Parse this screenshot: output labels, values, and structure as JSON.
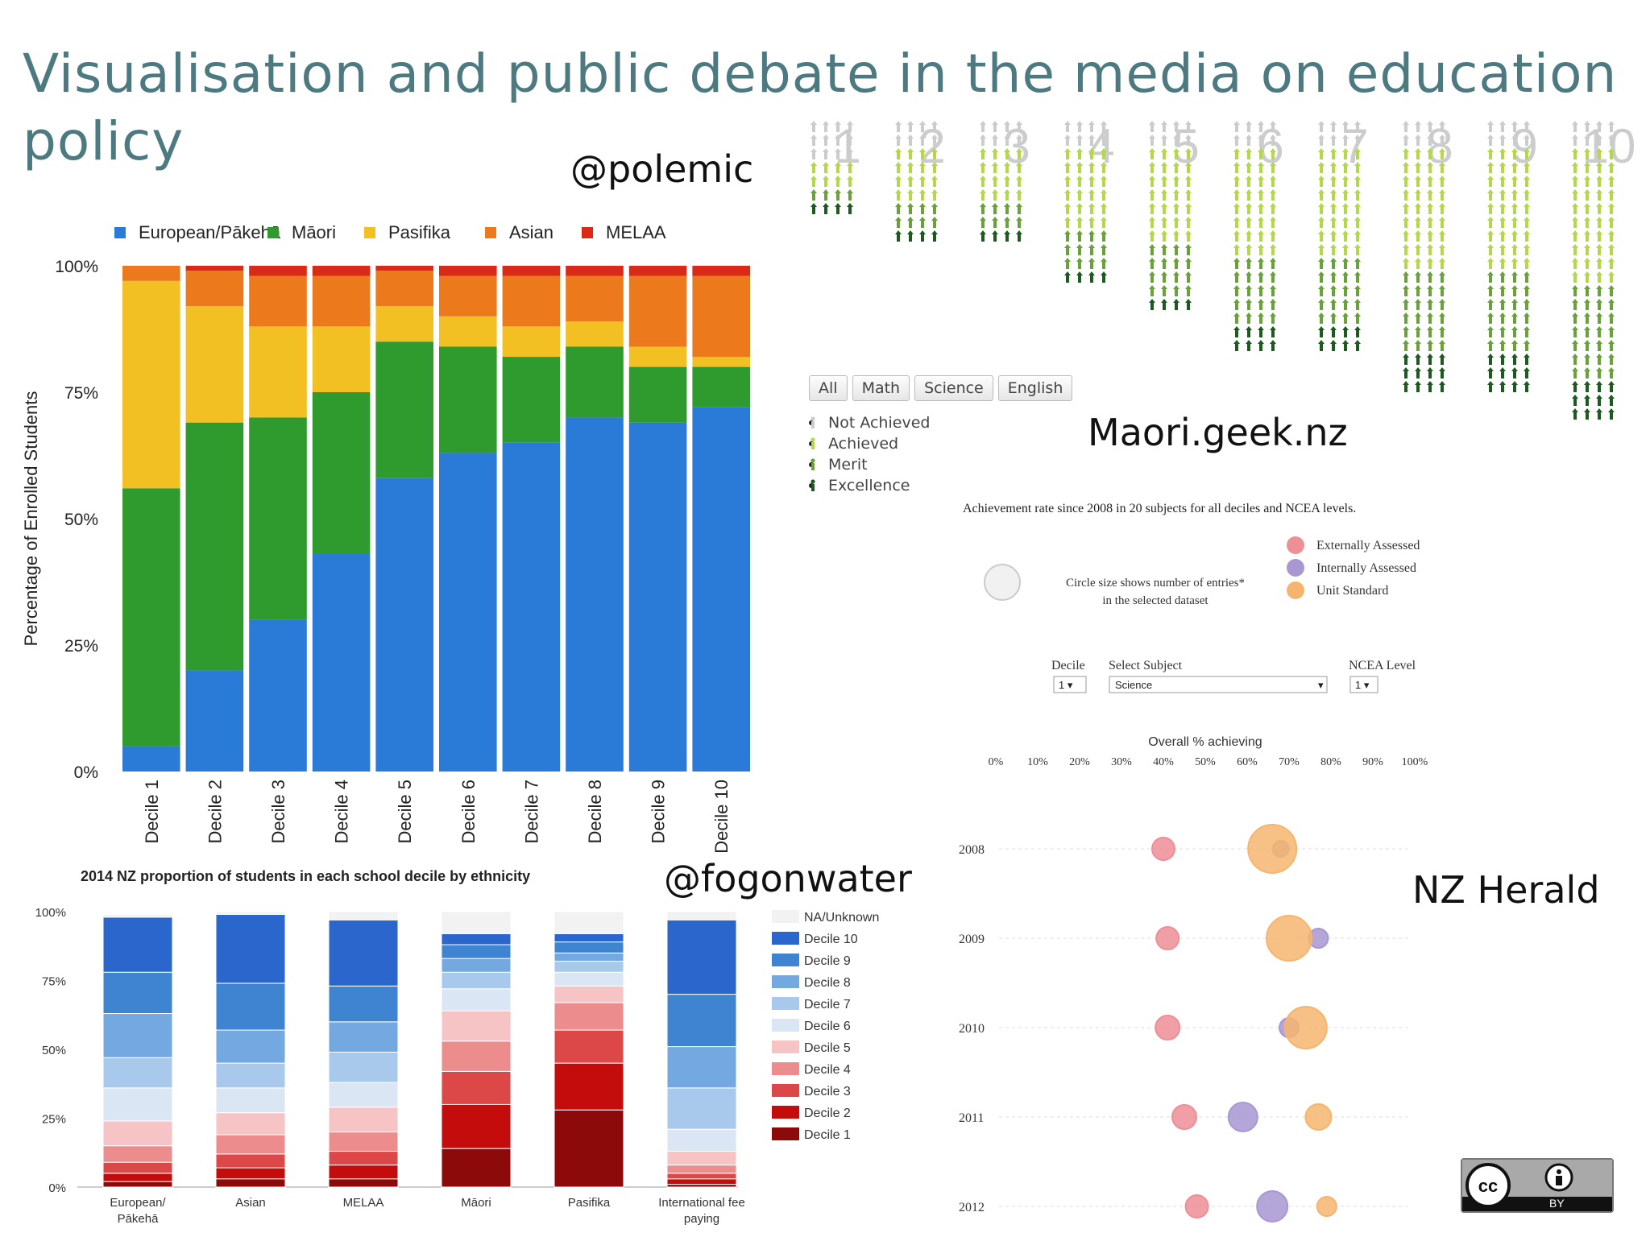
{
  "slide": {
    "title": "Visualisation and public debate in the media on education policy",
    "credits": {
      "polemic": "@polemic",
      "fogonwater": "@fogonwater",
      "maori_geek": "Maori.geek.nz",
      "nz_herald": "NZ Herald"
    },
    "license_badge": {
      "text": "BY",
      "icon": "creative-commons-icon"
    }
  },
  "colors": {
    "title": "#4c7a80",
    "european": "#2a7ad8",
    "maori": "#2f9a2e",
    "pasifika": "#f2c022",
    "asian": "#ec7a1c",
    "melaa": "#d82a16",
    "not_achieved": "#cccccc",
    "achieved": "#b3d84a",
    "merit": "#6aa23a",
    "excellence": "#1d5a1d",
    "external": "#ee8e96",
    "internal": "#a897d2",
    "unit_standard": "#f6b56e"
  },
  "chart_data": [
    {
      "id": "polemic",
      "type": "bar",
      "stacked": true,
      "categories": [
        "Decile 1",
        "Decile 2",
        "Decile 3",
        "Decile 4",
        "Decile 5",
        "Decile 6",
        "Decile 7",
        "Decile 8",
        "Decile 9",
        "Decile 10"
      ],
      "series": [
        {
          "name": "European/Pākehā",
          "values": [
            5,
            20,
            30,
            43,
            58,
            63,
            65,
            70,
            69,
            72
          ]
        },
        {
          "name": "Māori",
          "values": [
            51,
            49,
            40,
            32,
            27,
            21,
            17,
            14,
            11,
            8
          ]
        },
        {
          "name": "Pasifika",
          "values": [
            41,
            23,
            18,
            13,
            7,
            6,
            6,
            5,
            4,
            2
          ]
        },
        {
          "name": "Asian",
          "values": [
            3,
            7,
            10,
            10,
            7,
            8,
            10,
            9,
            14,
            16
          ]
        },
        {
          "name": "MELAA",
          "values": [
            0,
            1,
            2,
            2,
            1,
            2,
            2,
            2,
            2,
            2
          ]
        }
      ],
      "ylabel": "Percentage of Enrolled Students",
      "yticks": [
        "0%",
        "25%",
        "50%",
        "75%",
        "100%"
      ],
      "ylim": [
        0,
        100
      ],
      "legend": "top"
    },
    {
      "id": "fogonwater",
      "type": "bar",
      "stacked": true,
      "title": "2014 NZ proportion of students in each school decile by ethnicity",
      "categories": [
        "European/\nPākehā",
        "Asian",
        "MELAA",
        "Māori",
        "Pasifika",
        "International fee\npaying"
      ],
      "legend_order": [
        "NA/Unknown",
        "Decile 10",
        "Decile 9",
        "Decile 8",
        "Decile 7",
        "Decile 6",
        "Decile 5",
        "Decile 4",
        "Decile 3",
        "Decile 2",
        "Decile 1"
      ],
      "series": [
        {
          "name": "Decile 1",
          "values": [
            2,
            3,
            3,
            14,
            28,
            1
          ]
        },
        {
          "name": "Decile 2",
          "values": [
            3,
            4,
            5,
            16,
            17,
            2
          ]
        },
        {
          "name": "Decile 3",
          "values": [
            4,
            5,
            5,
            12,
            12,
            2
          ]
        },
        {
          "name": "Decile 4",
          "values": [
            6,
            7,
            7,
            11,
            10,
            3
          ]
        },
        {
          "name": "Decile 5",
          "values": [
            9,
            8,
            9,
            11,
            6,
            5
          ]
        },
        {
          "name": "Decile 6",
          "values": [
            12,
            9,
            9,
            8,
            5,
            8
          ]
        },
        {
          "name": "Decile 7",
          "values": [
            11,
            9,
            11,
            6,
            4,
            15
          ]
        },
        {
          "name": "Decile 8",
          "values": [
            16,
            12,
            11,
            5,
            3,
            15
          ]
        },
        {
          "name": "Decile 9",
          "values": [
            15,
            17,
            13,
            5,
            4,
            19
          ]
        },
        {
          "name": "Decile 10",
          "values": [
            20,
            25,
            24,
            4,
            3,
            27
          ]
        },
        {
          "name": "NA/Unknown",
          "values": [
            1,
            1,
            3,
            8,
            8,
            3
          ]
        }
      ],
      "yticks": [
        "0%",
        "25%",
        "50%",
        "75%",
        "100%"
      ],
      "ylim": [
        0,
        100
      ],
      "legend": "right"
    },
    {
      "id": "maori_geek",
      "type": "bar",
      "subtype": "pictogram",
      "categories": [
        "1",
        "2",
        "3",
        "4",
        "5",
        "6",
        "7",
        "8",
        "9",
        "10"
      ],
      "tabs": [
        "All",
        "Math",
        "Science",
        "English"
      ],
      "legend": [
        "Not Achieved",
        "Achieved",
        "Merit",
        "Excellence"
      ],
      "series": [
        {
          "name": "Not Achieved",
          "values": [
            3,
            2,
            2,
            2,
            2,
            2,
            2,
            2,
            2,
            2
          ]
        },
        {
          "name": "Achieved",
          "values": [
            2,
            4,
            4,
            6,
            7,
            8,
            8,
            9,
            9,
            10
          ]
        },
        {
          "name": "Merit",
          "values": [
            1,
            2,
            2,
            3,
            4,
            5,
            5,
            6,
            6,
            7
          ]
        },
        {
          "name": "Excellence",
          "values": [
            1,
            1,
            1,
            1,
            1,
            2,
            2,
            3,
            3,
            3
          ]
        }
      ]
    },
    {
      "id": "nz_herald",
      "type": "scatter",
      "subtype": "bubble",
      "title": "Achievement rate since 2008 in 20 subjects for all deciles and NCEA levels.",
      "size_note": "Circle size shows number of entries*\nin the selected dataset",
      "legend": [
        "Externally Assessed",
        "Internally Assessed",
        "Unit Standard"
      ],
      "controls": {
        "decile": {
          "label": "Decile",
          "value": "1"
        },
        "subject": {
          "label": "Select Subject",
          "value": "Science"
        },
        "ncea_level": {
          "label": "NCEA Level",
          "value": "1"
        }
      },
      "xlabel": "Overall % achieving",
      "xticks": [
        "0%",
        "10%",
        "20%",
        "30%",
        "40%",
        "50%",
        "60%",
        "70%",
        "80%",
        "90%",
        "100%"
      ],
      "xlim": [
        0,
        100
      ],
      "years": [
        "2008",
        "2009",
        "2010",
        "2011",
        "2012"
      ],
      "points": [
        {
          "year": "2008",
          "type": "Externally Assessed",
          "x": 40,
          "size": 14
        },
        {
          "year": "2008",
          "type": "Internally Assessed",
          "x": 68,
          "size": 10
        },
        {
          "year": "2008",
          "type": "Unit Standard",
          "x": 66,
          "size": 30
        },
        {
          "year": "2009",
          "type": "Externally Assessed",
          "x": 41,
          "size": 14
        },
        {
          "year": "2009",
          "type": "Internally Assessed",
          "x": 77,
          "size": 12
        },
        {
          "year": "2009",
          "type": "Unit Standard",
          "x": 70,
          "size": 28
        },
        {
          "year": "2010",
          "type": "Externally Assessed",
          "x": 41,
          "size": 15
        },
        {
          "year": "2010",
          "type": "Internally Assessed",
          "x": 70,
          "size": 12
        },
        {
          "year": "2010",
          "type": "Unit Standard",
          "x": 74,
          "size": 26
        },
        {
          "year": "2011",
          "type": "Externally Assessed",
          "x": 45,
          "size": 15
        },
        {
          "year": "2011",
          "type": "Internally Assessed",
          "x": 59,
          "size": 18
        },
        {
          "year": "2011",
          "type": "Unit Standard",
          "x": 77,
          "size": 16
        },
        {
          "year": "2012",
          "type": "Externally Assessed",
          "x": 48,
          "size": 14
        },
        {
          "year": "2012",
          "type": "Internally Assessed",
          "x": 66,
          "size": 19
        },
        {
          "year": "2012",
          "type": "Unit Standard",
          "x": 79,
          "size": 12
        }
      ]
    }
  ]
}
